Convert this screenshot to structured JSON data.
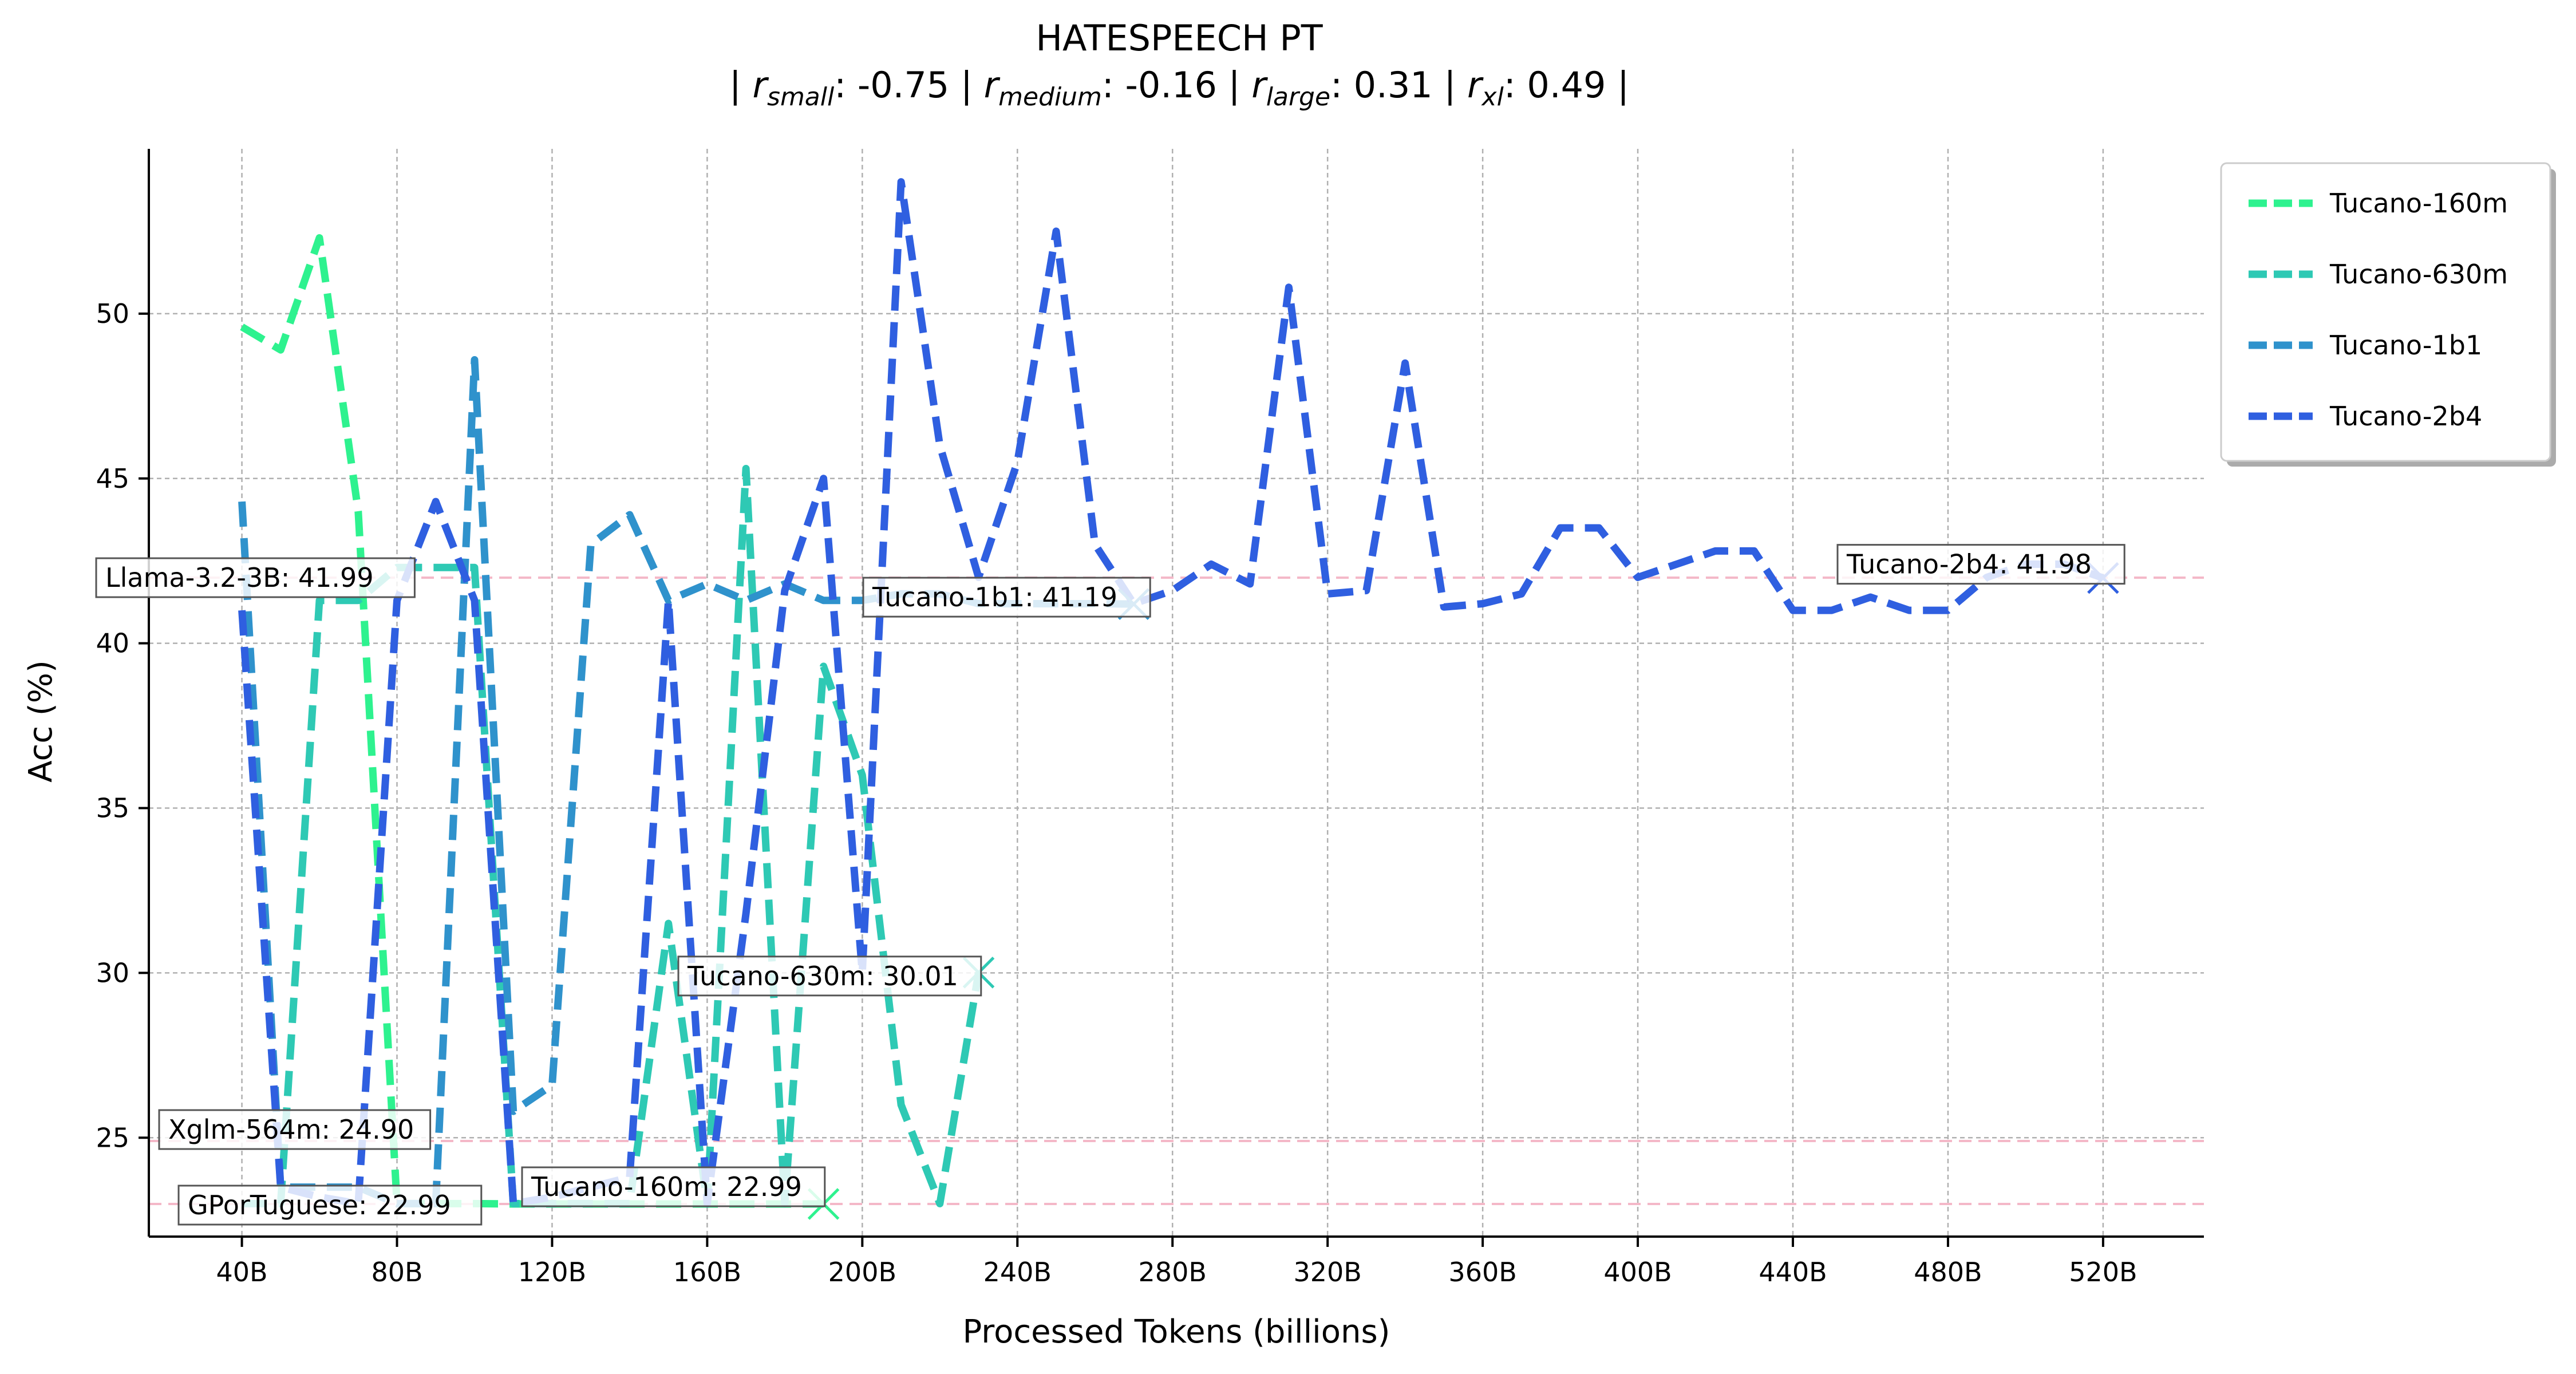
{
  "chart_data": {
    "type": "line",
    "title": "HATESPEECH PT",
    "subtitle": {
      "r_small_label": "small",
      "r_small": "-0.75",
      "r_medium_label": "medium",
      "r_medium": "-0.16",
      "r_large_label": "large",
      "r_large": "0.31",
      "r_xl_label": "xl",
      "r_xl": "0.49"
    },
    "xlabel": "Processed Tokens (billions)",
    "ylabel": "Acc (%)",
    "xlim": [
      16,
      546
    ],
    "ylim": [
      22.0,
      55.0
    ],
    "xticks": [
      40,
      80,
      120,
      160,
      200,
      240,
      280,
      320,
      360,
      400,
      440,
      480,
      520
    ],
    "xtick_labels": [
      "40B",
      "80B",
      "120B",
      "160B",
      "200B",
      "240B",
      "280B",
      "320B",
      "360B",
      "400B",
      "440B",
      "480B",
      "520B"
    ],
    "yticks": [
      25,
      30,
      35,
      40,
      45,
      50
    ],
    "ytick_labels": [
      "25",
      "30",
      "35",
      "40",
      "45",
      "50"
    ],
    "grid": true,
    "legend_position": "outside-top-right",
    "series": [
      {
        "name": "Tucano-160m",
        "color": "#2ef28f",
        "x": [
          40,
          50,
          60,
          70,
          80,
          90,
          100,
          110,
          120,
          130,
          140,
          150,
          160,
          170,
          180,
          190
        ],
        "y": [
          49.6,
          48.9,
          52.3,
          44.0,
          23.0,
          23.0,
          23.0,
          22.99,
          22.99,
          22.99,
          22.99,
          22.99,
          22.99,
          22.99,
          22.99,
          22.99
        ],
        "final_label": "Tucano-160m: 22.99"
      },
      {
        "name": "Tucano-630m",
        "color": "#2ec9b4",
        "x": [
          40,
          50,
          60,
          70,
          80,
          90,
          100,
          110,
          120,
          130,
          140,
          150,
          160,
          170,
          180,
          190,
          200,
          210,
          220,
          230
        ],
        "y": [
          23.0,
          23.0,
          41.3,
          41.3,
          42.3,
          42.3,
          42.3,
          23.0,
          23.0,
          23.0,
          23.0,
          31.5,
          23.0,
          45.3,
          23.0,
          39.3,
          36.0,
          26.0,
          23.0,
          30.01
        ],
        "final_label": "Tucano-630m: 30.01"
      },
      {
        "name": "Tucano-1b1",
        "color": "#2f92cc",
        "x": [
          40,
          50,
          60,
          70,
          80,
          90,
          100,
          110,
          120,
          130,
          140,
          150,
          160,
          170,
          180,
          190,
          200,
          210,
          220,
          230,
          240,
          250,
          260,
          270
        ],
        "y": [
          44.3,
          23.5,
          23.5,
          23.5,
          23.0,
          23.0,
          48.6,
          25.8,
          26.6,
          43.0,
          43.9,
          41.3,
          41.8,
          41.3,
          41.8,
          41.3,
          41.3,
          41.5,
          41.5,
          41.2,
          41.2,
          41.2,
          41.2,
          41.19
        ],
        "final_label": "Tucano-1b1: 41.19"
      },
      {
        "name": "Tucano-2b4",
        "color": "#2f5fe0",
        "x": [
          40,
          50,
          60,
          70,
          80,
          90,
          100,
          110,
          120,
          130,
          140,
          150,
          160,
          170,
          180,
          190,
          200,
          210,
          220,
          230,
          240,
          250,
          260,
          270,
          280,
          290,
          300,
          310,
          320,
          330,
          340,
          350,
          360,
          370,
          380,
          390,
          400,
          410,
          420,
          430,
          440,
          450,
          460,
          470,
          480,
          490,
          500,
          510,
          520
        ],
        "y": [
          41.0,
          23.5,
          23.2,
          23.0,
          41.3,
          44.3,
          41.3,
          23.0,
          23.2,
          23.5,
          23.8,
          41.3,
          23.0,
          31.8,
          41.6,
          45.0,
          30.0,
          54.0,
          46.0,
          42.0,
          45.5,
          52.5,
          43.0,
          41.2,
          41.6,
          42.4,
          41.8,
          50.8,
          41.5,
          41.6,
          48.5,
          41.1,
          41.2,
          41.5,
          43.5,
          43.5,
          42.0,
          42.4,
          42.8,
          42.8,
          41.0,
          41.0,
          41.4,
          41.0,
          41.0,
          42.0,
          42.4,
          42.4,
          41.98
        ],
        "final_label": "Tucano-2b4: 41.98"
      }
    ],
    "baselines": [
      {
        "label": "Llama-3.2-3B: 41.99",
        "value": 41.99,
        "color": "#f4b8c8"
      },
      {
        "label": "Xglm-564m: 24.90",
        "value": 24.9,
        "color": "#f4b8c8"
      },
      {
        "label": "GPorTuguese: 22.99",
        "value": 22.99,
        "color": "#f4b8c8"
      }
    ]
  }
}
